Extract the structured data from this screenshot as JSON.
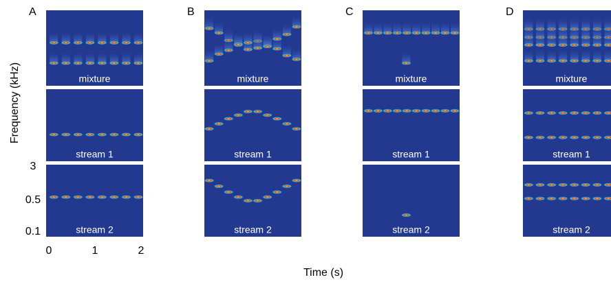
{
  "y_axis_label": "Frequency (kHz)",
  "x_axis_label": "Time (s)",
  "y_ticks": [
    "3",
    "0.5",
    "0.1"
  ],
  "x_ticks": [
    "0",
    "1",
    "2"
  ],
  "panels": [
    {
      "label": "A",
      "rows": [
        "mixture",
        "stream 1",
        "stream 2"
      ]
    },
    {
      "label": "B",
      "rows": [
        "mixture",
        "stream 1",
        "stream 2"
      ]
    },
    {
      "label": "C",
      "rows": [
        "mixture",
        "stream 1",
        "stream 2"
      ]
    },
    {
      "label": "D",
      "rows": [
        "mixture",
        "stream 1",
        "stream 2"
      ]
    }
  ]
}
